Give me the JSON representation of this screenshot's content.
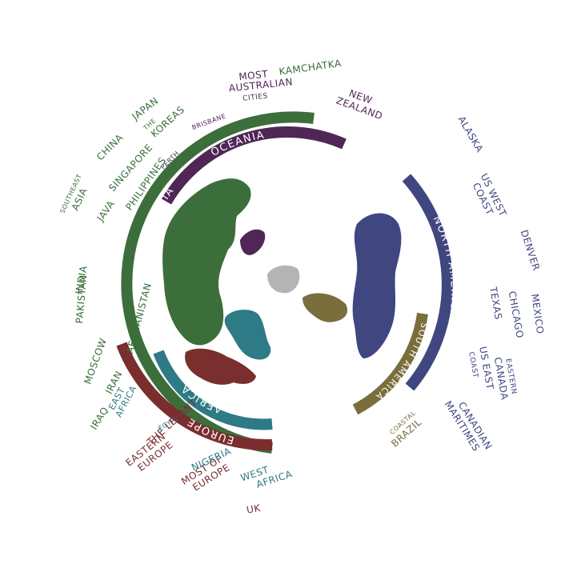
{
  "colors": {
    "asia": "#3c6e3c",
    "oceania": "#4f2656",
    "north_america": "#404680",
    "south_america": "#7a6e3c",
    "africa": "#2e7a86",
    "europe": "#7a2e2e",
    "antarctica": "#b4b4b4"
  },
  "regions": {
    "asia": "ASIA",
    "oceania": "OCEANIA",
    "north_america": "NORTH AMERICA",
    "south_america": "SOUTH AMERICA",
    "africa": "AFRICA",
    "europe": "EUROPE"
  },
  "places": {
    "kamchatka": "KAMCHATKA",
    "most_australian_cities": [
      "MOST",
      "AUSTRALIAN",
      "CITIES"
    ],
    "brisbane": "BRISBANE",
    "new_zealand": [
      "NEW",
      "ZEALAND"
    ],
    "japan": "JAPAN",
    "the_koreas": [
      "THE",
      "KOREAS"
    ],
    "china": "CHINA",
    "singapore": "SINGAPORE",
    "perth": "PERTH",
    "philippines": "PHILIPPINES",
    "java": "JAVA",
    "southeast_asia": [
      "SOUTHEAST",
      "ASIA"
    ],
    "india": "INDIA",
    "pakistan": "PAKISTAN",
    "afghanistan": "AFGHANISTAN",
    "moscow": "MOSCOW",
    "iran": "IRAN",
    "iraq": "IRAQ",
    "east_africa": [
      "EAST",
      "AFRICA"
    ],
    "egypt": "EGYPT",
    "the_levant": "THE LEVANT",
    "eastern_europe": [
      "EASTERN",
      "EUROPE"
    ],
    "most_of_europe": [
      "MOST OF",
      "EUROPE"
    ],
    "nigeria": "NIGERIA",
    "west_africa": [
      "WEST",
      "AFRICA"
    ],
    "uk": "UK",
    "alaska": "ALASKA",
    "us_west_coast": [
      "US WEST",
      "COAST"
    ],
    "denver": "DENVER",
    "mexico": "MEXICO",
    "chicago": "CHICAGO",
    "texas": "TEXAS",
    "eastern_canada": [
      "EASTERN",
      "CANADA"
    ],
    "us_east_coast": [
      "US EAST",
      "COAST"
    ],
    "canadian_maritimes": [
      "CANADIAN",
      "MARITIMES"
    ],
    "coastal_brazil": [
      "COASTAL",
      "BRAZIL"
    ]
  }
}
